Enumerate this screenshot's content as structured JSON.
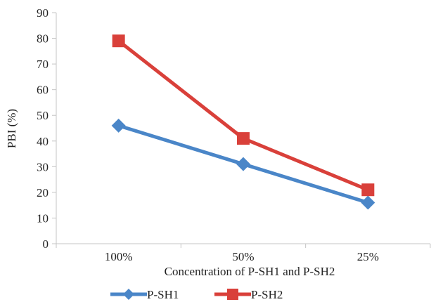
{
  "chart_data": {
    "type": "line",
    "title": "",
    "xlabel": "Concentration of P-SH1 and P-SH2",
    "ylabel": "PBI (%)",
    "categories": [
      "100%",
      "50%",
      "25%"
    ],
    "ylim": [
      0,
      90
    ],
    "yticks": [
      0,
      10,
      20,
      30,
      40,
      50,
      60,
      70,
      80,
      90
    ],
    "grid": false,
    "legend_position": "bottom",
    "series": [
      {
        "name": "P-SH1",
        "values": [
          46,
          31,
          16
        ],
        "color": "#4a86c8",
        "marker": "diamond"
      },
      {
        "name": "P-SH2",
        "values": [
          79,
          41,
          21
        ],
        "color": "#d9403a",
        "marker": "square"
      }
    ]
  }
}
